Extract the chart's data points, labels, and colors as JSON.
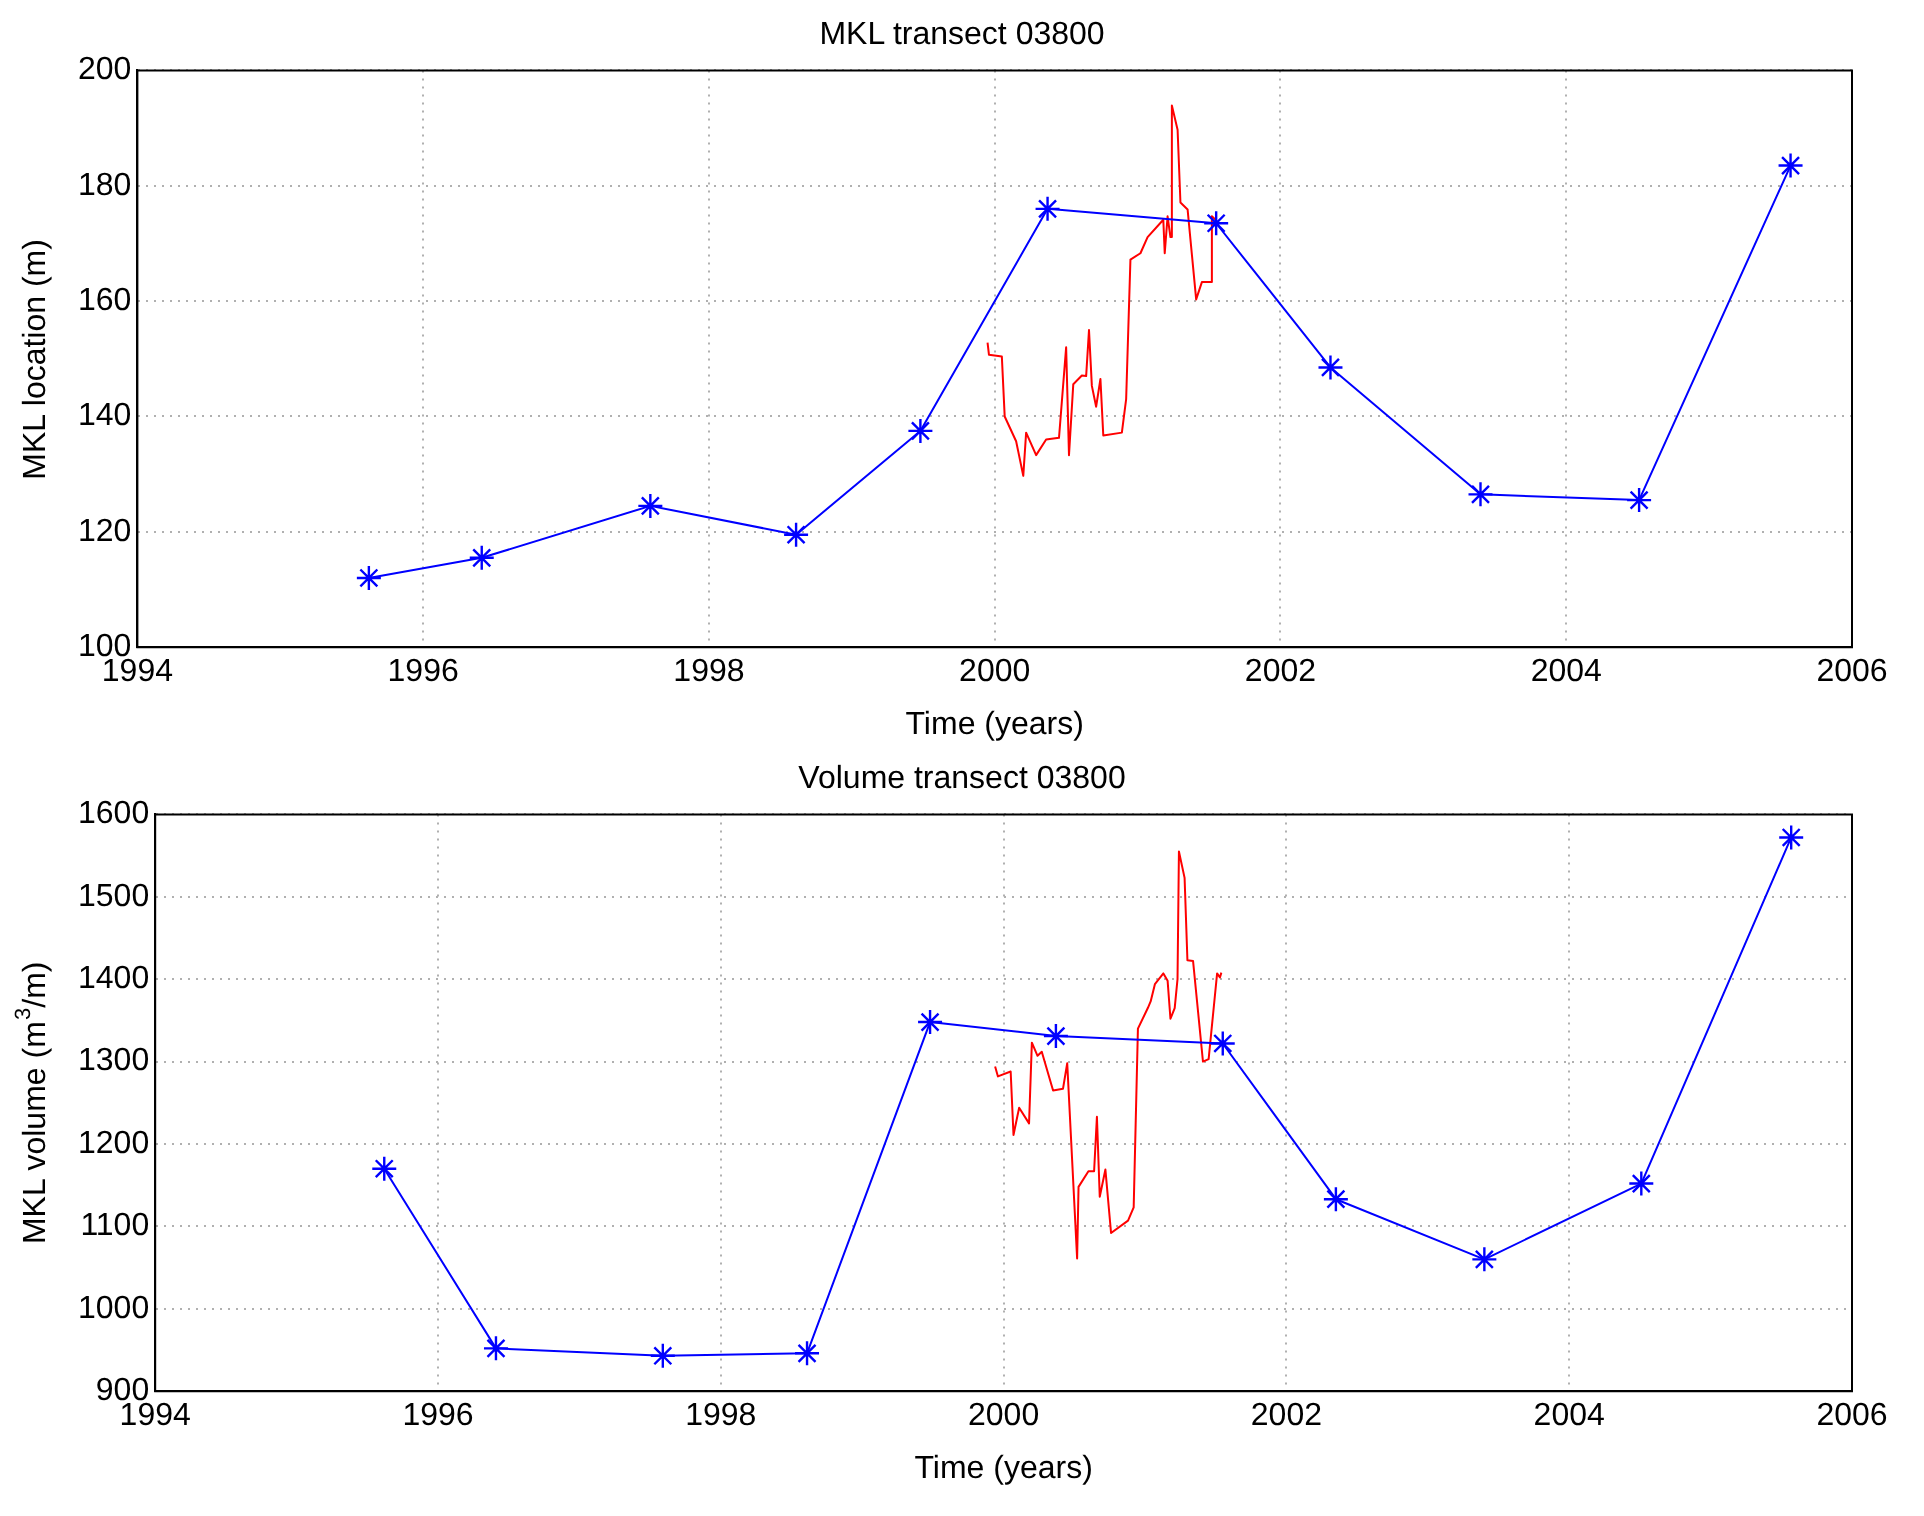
{
  "chart_data": [
    {
      "type": "line",
      "title": "MKL transect 03800",
      "xlabel": "Time (years)",
      "ylabel": "MKL location (m)",
      "xlim": [
        1994,
        2006
      ],
      "xticks": [
        1994,
        1996,
        1998,
        2000,
        2002,
        2004,
        2006
      ],
      "ylim": [
        100,
        200
      ],
      "yticks": [
        100,
        120,
        140,
        160,
        180,
        200
      ],
      "grid": true,
      "legend": false,
      "series": [
        {
          "color": "#0000ff",
          "marker": "cross",
          "x": [
            1995.62,
            1996.41,
            1997.59,
            1998.61,
            1999.48,
            2000.37,
            2001.55,
            2002.35,
            2003.4,
            2004.51,
            2005.57
          ],
          "values": [
            112,
            115.5,
            124.5,
            119.5,
            137.5,
            176,
            173.5,
            148.5,
            126.5,
            125.5,
            183.5
          ]
        },
        {
          "color": "#ff0000",
          "marker": "none",
          "x": [
            1999.95,
            1999.96,
            2000.05,
            2000.07,
            2000.15,
            2000.2,
            2000.22,
            2000.29,
            2000.36,
            2000.45,
            2000.5,
            2000.52,
            2000.55,
            2000.61,
            2000.64,
            2000.66,
            2000.68,
            2000.71,
            2000.74,
            2000.76,
            2000.89,
            2000.92,
            2000.95,
            2001.02,
            2001.07,
            2001.18,
            2001.19,
            2001.21,
            2001.23,
            2001.24,
            2001.28,
            2001.3,
            2001.35,
            2001.41,
            2001.45,
            2001.51,
            2001.52,
            2001.55
          ],
          "values": [
            152.8,
            150.7,
            150.4,
            140,
            135.7,
            129.7,
            137.2,
            133.3,
            136,
            136.3,
            152,
            133.3,
            145.6,
            147.1,
            147,
            155,
            145.3,
            141.7,
            146.5,
            136.7,
            137.2,
            143,
            167.2,
            168.3,
            171.1,
            174.1,
            168.3,
            174.7,
            171.1,
            193.9,
            189.7,
            177.1,
            175.9,
            160.3,
            163.3,
            163.3,
            174.7,
            174
          ]
        }
      ]
    },
    {
      "type": "line",
      "title": "Volume transect 03800",
      "xlabel": "Time (years)",
      "ylabel": "MKL volume (m$^{3}$/m)",
      "xlim": [
        1994,
        2006
      ],
      "xticks": [
        1994,
        1996,
        1998,
        2000,
        2002,
        2004,
        2006
      ],
      "ylim": [
        900,
        1600
      ],
      "yticks": [
        900,
        1000,
        1100,
        1200,
        1300,
        1400,
        1500,
        1600
      ],
      "grid": true,
      "legend": false,
      "series": [
        {
          "color": "#0000ff",
          "marker": "cross",
          "x": [
            1995.62,
            1996.41,
            1997.59,
            1998.61,
            1999.48,
            2000.37,
            2001.55,
            2002.35,
            2003.4,
            2004.51,
            2005.57
          ],
          "values": [
            1170,
            952,
            943,
            946,
            1348,
            1331,
            1322,
            1133,
            1060,
            1152,
            1572
          ]
        },
        {
          "color": "#ff0000",
          "marker": "none",
          "x": [
            1999.94,
            1999.96,
            2000.05,
            2000.07,
            2000.11,
            2000.18,
            2000.2,
            2000.24,
            2000.27,
            2000.35,
            2000.42,
            2000.45,
            2000.52,
            2000.53,
            2000.6,
            2000.64,
            2000.66,
            2000.68,
            2000.72,
            2000.76,
            2000.88,
            2000.92,
            2000.95,
            2001.02,
            2001.04,
            2001.07,
            2001.13,
            2001.16,
            2001.18,
            2001.21,
            2001.23,
            2001.24,
            2001.28,
            2001.3,
            2001.34,
            2001.41,
            2001.45,
            2001.51,
            2001.53,
            2001.54
          ],
          "values": [
            1294,
            1282,
            1288,
            1211,
            1244,
            1225,
            1323,
            1307,
            1312,
            1265,
            1267,
            1298,
            1061,
            1148,
            1167,
            1167,
            1233,
            1136,
            1169,
            1092,
            1107,
            1123,
            1340,
            1365,
            1373,
            1394,
            1407,
            1398,
            1352,
            1365,
            1400,
            1555,
            1523,
            1423,
            1422,
            1300,
            1303,
            1407,
            1402,
            1408
          ]
        }
      ]
    }
  ]
}
